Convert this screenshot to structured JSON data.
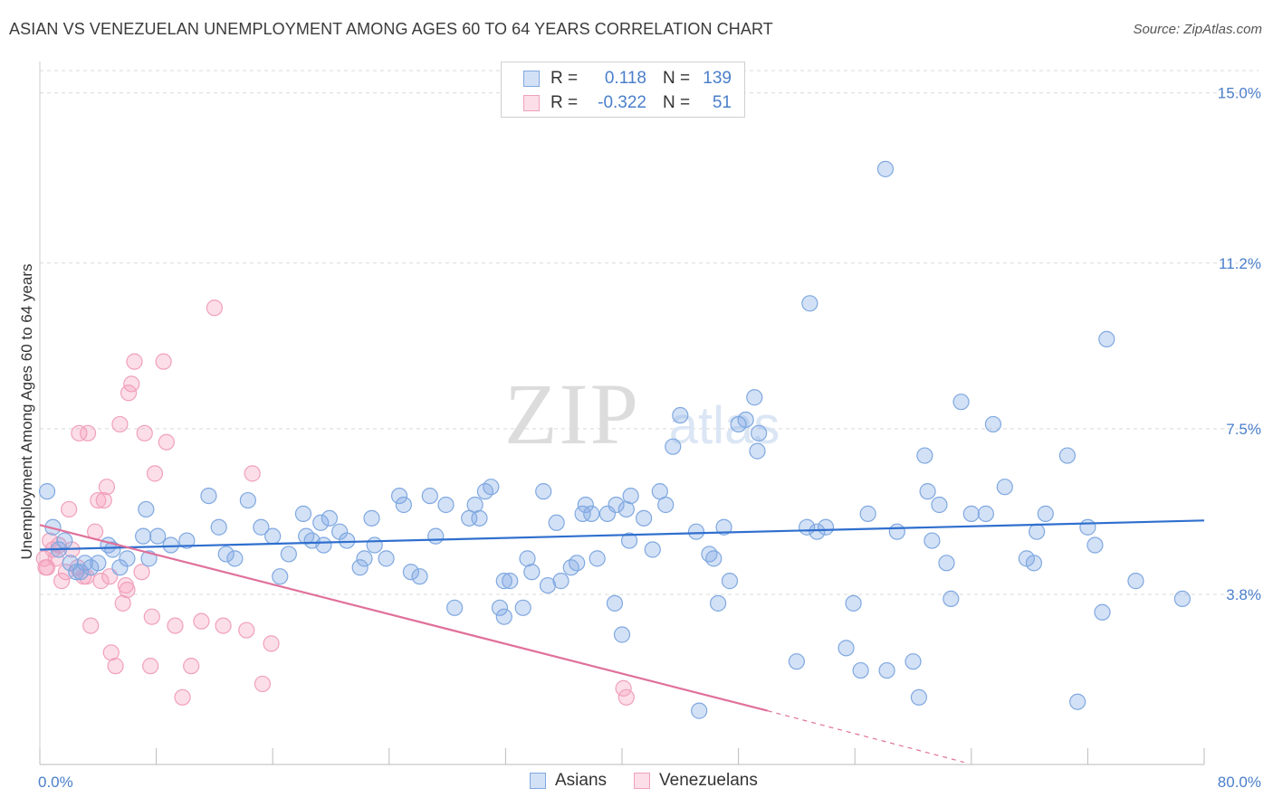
{
  "title": "ASIAN VS VENEZUELAN UNEMPLOYMENT AMONG AGES 60 TO 64 YEARS CORRELATION CHART",
  "source": "Source: ZipAtlas.com",
  "watermark": {
    "zip": "ZIP",
    "atlas": "atlas"
  },
  "colors": {
    "asian_fill": "rgba(130,170,230,0.35)",
    "asian_stroke": "#7fa8e0",
    "asian_line": "#2f6fce",
    "ven_fill": "rgba(245,160,190,0.35)",
    "ven_stroke": "#f0a0bc",
    "ven_line": "#e0709a",
    "grid": "#d9d9d9",
    "tick_label": "#4a7fcb"
  },
  "legend_top": [
    {
      "r_label": "R =",
      "r_value": "0.118",
      "n_label": "N =",
      "n_value": "139"
    },
    {
      "r_label": "R =",
      "r_value": "-0.322",
      "n_label": "N =",
      "n_value": "51"
    }
  ],
  "legend_bottom": [
    "Asians",
    "Venezuelans"
  ],
  "chart_data": {
    "type": "scatter",
    "title": "ASIAN VS VENEZUELAN UNEMPLOYMENT AMONG AGES 60 TO 64 YEARS CORRELATION CHART",
    "xlabel": "",
    "ylabel": "Unemployment Among Ages 60 to 64 years",
    "xlim": [
      0,
      80
    ],
    "ylim": [
      0,
      15.5
    ],
    "x_tick_labels": [
      "0.0%",
      "80.0%"
    ],
    "y_ticks": [
      3.8,
      7.5,
      11.2,
      15.0
    ],
    "y_tick_labels": [
      "3.8%",
      "7.5%",
      "11.2%",
      "15.0%"
    ],
    "grid": true,
    "legend_position": "top-center",
    "series": [
      {
        "name": "Asians",
        "r": 0.118,
        "n": 139,
        "trend": {
          "x": [
            0,
            80
          ],
          "y": [
            4.8,
            5.45
          ]
        },
        "points": [
          [
            0.5,
            6.1
          ],
          [
            0.9,
            5.3
          ],
          [
            1.3,
            4.8
          ],
          [
            1.7,
            5.0
          ],
          [
            2.1,
            4.5
          ],
          [
            2.5,
            4.3
          ],
          [
            2.8,
            4.3
          ],
          [
            3.1,
            4.5
          ],
          [
            3.5,
            4.4
          ],
          [
            4.0,
            4.5
          ],
          [
            4.7,
            4.9
          ],
          [
            5.0,
            4.8
          ],
          [
            5.5,
            4.4
          ],
          [
            6.0,
            4.6
          ],
          [
            7.1,
            5.1
          ],
          [
            7.3,
            5.7
          ],
          [
            7.5,
            4.6
          ],
          [
            8.1,
            5.1
          ],
          [
            9.0,
            4.9
          ],
          [
            10.1,
            5.0
          ],
          [
            11.6,
            6.0
          ],
          [
            12.3,
            5.3
          ],
          [
            12.8,
            4.7
          ],
          [
            13.4,
            4.6
          ],
          [
            14.3,
            5.9
          ],
          [
            15.2,
            5.3
          ],
          [
            16.0,
            5.1
          ],
          [
            16.5,
            4.2
          ],
          [
            17.1,
            4.7
          ],
          [
            18.1,
            5.6
          ],
          [
            18.3,
            5.1
          ],
          [
            18.7,
            5.0
          ],
          [
            19.3,
            5.4
          ],
          [
            19.5,
            4.9
          ],
          [
            19.9,
            5.5
          ],
          [
            20.6,
            5.2
          ],
          [
            21.1,
            5.0
          ],
          [
            22.0,
            4.4
          ],
          [
            22.3,
            4.6
          ],
          [
            22.8,
            5.5
          ],
          [
            23.0,
            4.9
          ],
          [
            23.8,
            4.6
          ],
          [
            24.7,
            6.0
          ],
          [
            25.0,
            5.8
          ],
          [
            25.5,
            4.3
          ],
          [
            26.1,
            4.2
          ],
          [
            26.8,
            6.0
          ],
          [
            27.2,
            5.1
          ],
          [
            27.9,
            5.8
          ],
          [
            28.5,
            3.5
          ],
          [
            29.5,
            5.5
          ],
          [
            29.9,
            5.8
          ],
          [
            30.2,
            5.5
          ],
          [
            30.6,
            6.1
          ],
          [
            31.0,
            6.2
          ],
          [
            31.6,
            3.5
          ],
          [
            31.9,
            3.3
          ],
          [
            31.9,
            4.1
          ],
          [
            32.3,
            4.1
          ],
          [
            33.2,
            3.5
          ],
          [
            33.5,
            4.6
          ],
          [
            33.8,
            4.3
          ],
          [
            34.6,
            6.1
          ],
          [
            34.9,
            4.0
          ],
          [
            35.5,
            5.4
          ],
          [
            35.8,
            4.1
          ],
          [
            36.5,
            4.4
          ],
          [
            36.9,
            4.5
          ],
          [
            37.3,
            5.6
          ],
          [
            37.5,
            5.8
          ],
          [
            37.9,
            5.6
          ],
          [
            38.3,
            4.6
          ],
          [
            39.0,
            5.6
          ],
          [
            39.5,
            3.6
          ],
          [
            39.6,
            5.8
          ],
          [
            40.0,
            2.9
          ],
          [
            40.3,
            5.7
          ],
          [
            40.5,
            5.0
          ],
          [
            40.6,
            6.0
          ],
          [
            41.5,
            5.5
          ],
          [
            42.1,
            4.8
          ],
          [
            42.6,
            6.1
          ],
          [
            43.0,
            5.8
          ],
          [
            43.5,
            7.1
          ],
          [
            44.0,
            7.8
          ],
          [
            45.1,
            5.2
          ],
          [
            45.3,
            1.2
          ],
          [
            46.0,
            4.7
          ],
          [
            46.3,
            4.6
          ],
          [
            46.6,
            3.6
          ],
          [
            47.0,
            5.3
          ],
          [
            47.4,
            4.1
          ],
          [
            48.0,
            7.6
          ],
          [
            48.5,
            7.7
          ],
          [
            49.1,
            8.2
          ],
          [
            49.3,
            7.0
          ],
          [
            49.4,
            7.4
          ],
          [
            52.0,
            2.3
          ],
          [
            52.7,
            5.3
          ],
          [
            52.9,
            10.3
          ],
          [
            53.4,
            5.2
          ],
          [
            54.0,
            5.3
          ],
          [
            55.4,
            2.6
          ],
          [
            55.9,
            3.6
          ],
          [
            56.4,
            2.1
          ],
          [
            56.9,
            5.6
          ],
          [
            58.1,
            13.3
          ],
          [
            58.2,
            2.1
          ],
          [
            58.9,
            5.2
          ],
          [
            60.0,
            2.3
          ],
          [
            60.4,
            1.5
          ],
          [
            60.8,
            6.9
          ],
          [
            61.0,
            6.1
          ],
          [
            61.3,
            5.0
          ],
          [
            61.8,
            5.8
          ],
          [
            62.3,
            4.5
          ],
          [
            62.6,
            3.7
          ],
          [
            63.3,
            8.1
          ],
          [
            64.0,
            5.6
          ],
          [
            65.0,
            5.6
          ],
          [
            65.5,
            7.6
          ],
          [
            66.3,
            6.2
          ],
          [
            67.8,
            4.6
          ],
          [
            68.3,
            4.5
          ],
          [
            68.5,
            5.2
          ],
          [
            69.1,
            5.6
          ],
          [
            70.6,
            6.9
          ],
          [
            71.3,
            1.4
          ],
          [
            72.0,
            5.3
          ],
          [
            72.5,
            4.9
          ],
          [
            73.0,
            3.4
          ],
          [
            73.3,
            9.5
          ],
          [
            75.3,
            4.1
          ],
          [
            78.5,
            3.7
          ]
        ]
      },
      {
        "name": "Venezuelans",
        "r": -0.322,
        "n": 51,
        "trend": {
          "x": [
            0,
            50
          ],
          "y": [
            5.35,
            1.2
          ],
          "dash_x": [
            50,
            63.5
          ],
          "dash_y": [
            1.2,
            0.05
          ]
        },
        "points": [
          [
            0.3,
            4.6
          ],
          [
            0.5,
            4.4
          ],
          [
            0.7,
            5.0
          ],
          [
            0.9,
            4.8
          ],
          [
            1.1,
            4.6
          ],
          [
            1.3,
            4.9
          ],
          [
            1.5,
            4.1
          ],
          [
            1.8,
            4.3
          ],
          [
            2.0,
            5.7
          ],
          [
            2.2,
            4.8
          ],
          [
            2.6,
            4.4
          ],
          [
            2.7,
            7.4
          ],
          [
            3.0,
            4.2
          ],
          [
            3.2,
            4.2
          ],
          [
            3.3,
            7.4
          ],
          [
            3.5,
            3.1
          ],
          [
            3.8,
            5.2
          ],
          [
            4.0,
            5.9
          ],
          [
            4.2,
            4.1
          ],
          [
            4.4,
            5.9
          ],
          [
            4.6,
            6.2
          ],
          [
            4.8,
            4.2
          ],
          [
            4.9,
            2.5
          ],
          [
            5.2,
            2.2
          ],
          [
            5.5,
            7.6
          ],
          [
            5.7,
            3.6
          ],
          [
            5.9,
            4.0
          ],
          [
            6.0,
            3.9
          ],
          [
            6.1,
            8.3
          ],
          [
            6.3,
            8.5
          ],
          [
            6.5,
            9.0
          ],
          [
            7.0,
            4.3
          ],
          [
            7.2,
            7.4
          ],
          [
            7.6,
            2.2
          ],
          [
            7.7,
            3.3
          ],
          [
            7.9,
            6.5
          ],
          [
            8.5,
            9.0
          ],
          [
            8.7,
            7.2
          ],
          [
            9.3,
            3.1
          ],
          [
            9.8,
            1.5
          ],
          [
            10.4,
            2.2
          ],
          [
            11.1,
            3.2
          ],
          [
            12.0,
            10.2
          ],
          [
            12.6,
            3.1
          ],
          [
            14.2,
            3.0
          ],
          [
            14.6,
            6.5
          ],
          [
            15.3,
            1.8
          ],
          [
            15.9,
            2.7
          ],
          [
            40.1,
            1.7
          ],
          [
            40.3,
            1.5
          ],
          [
            0.4,
            4.4
          ]
        ]
      }
    ]
  }
}
